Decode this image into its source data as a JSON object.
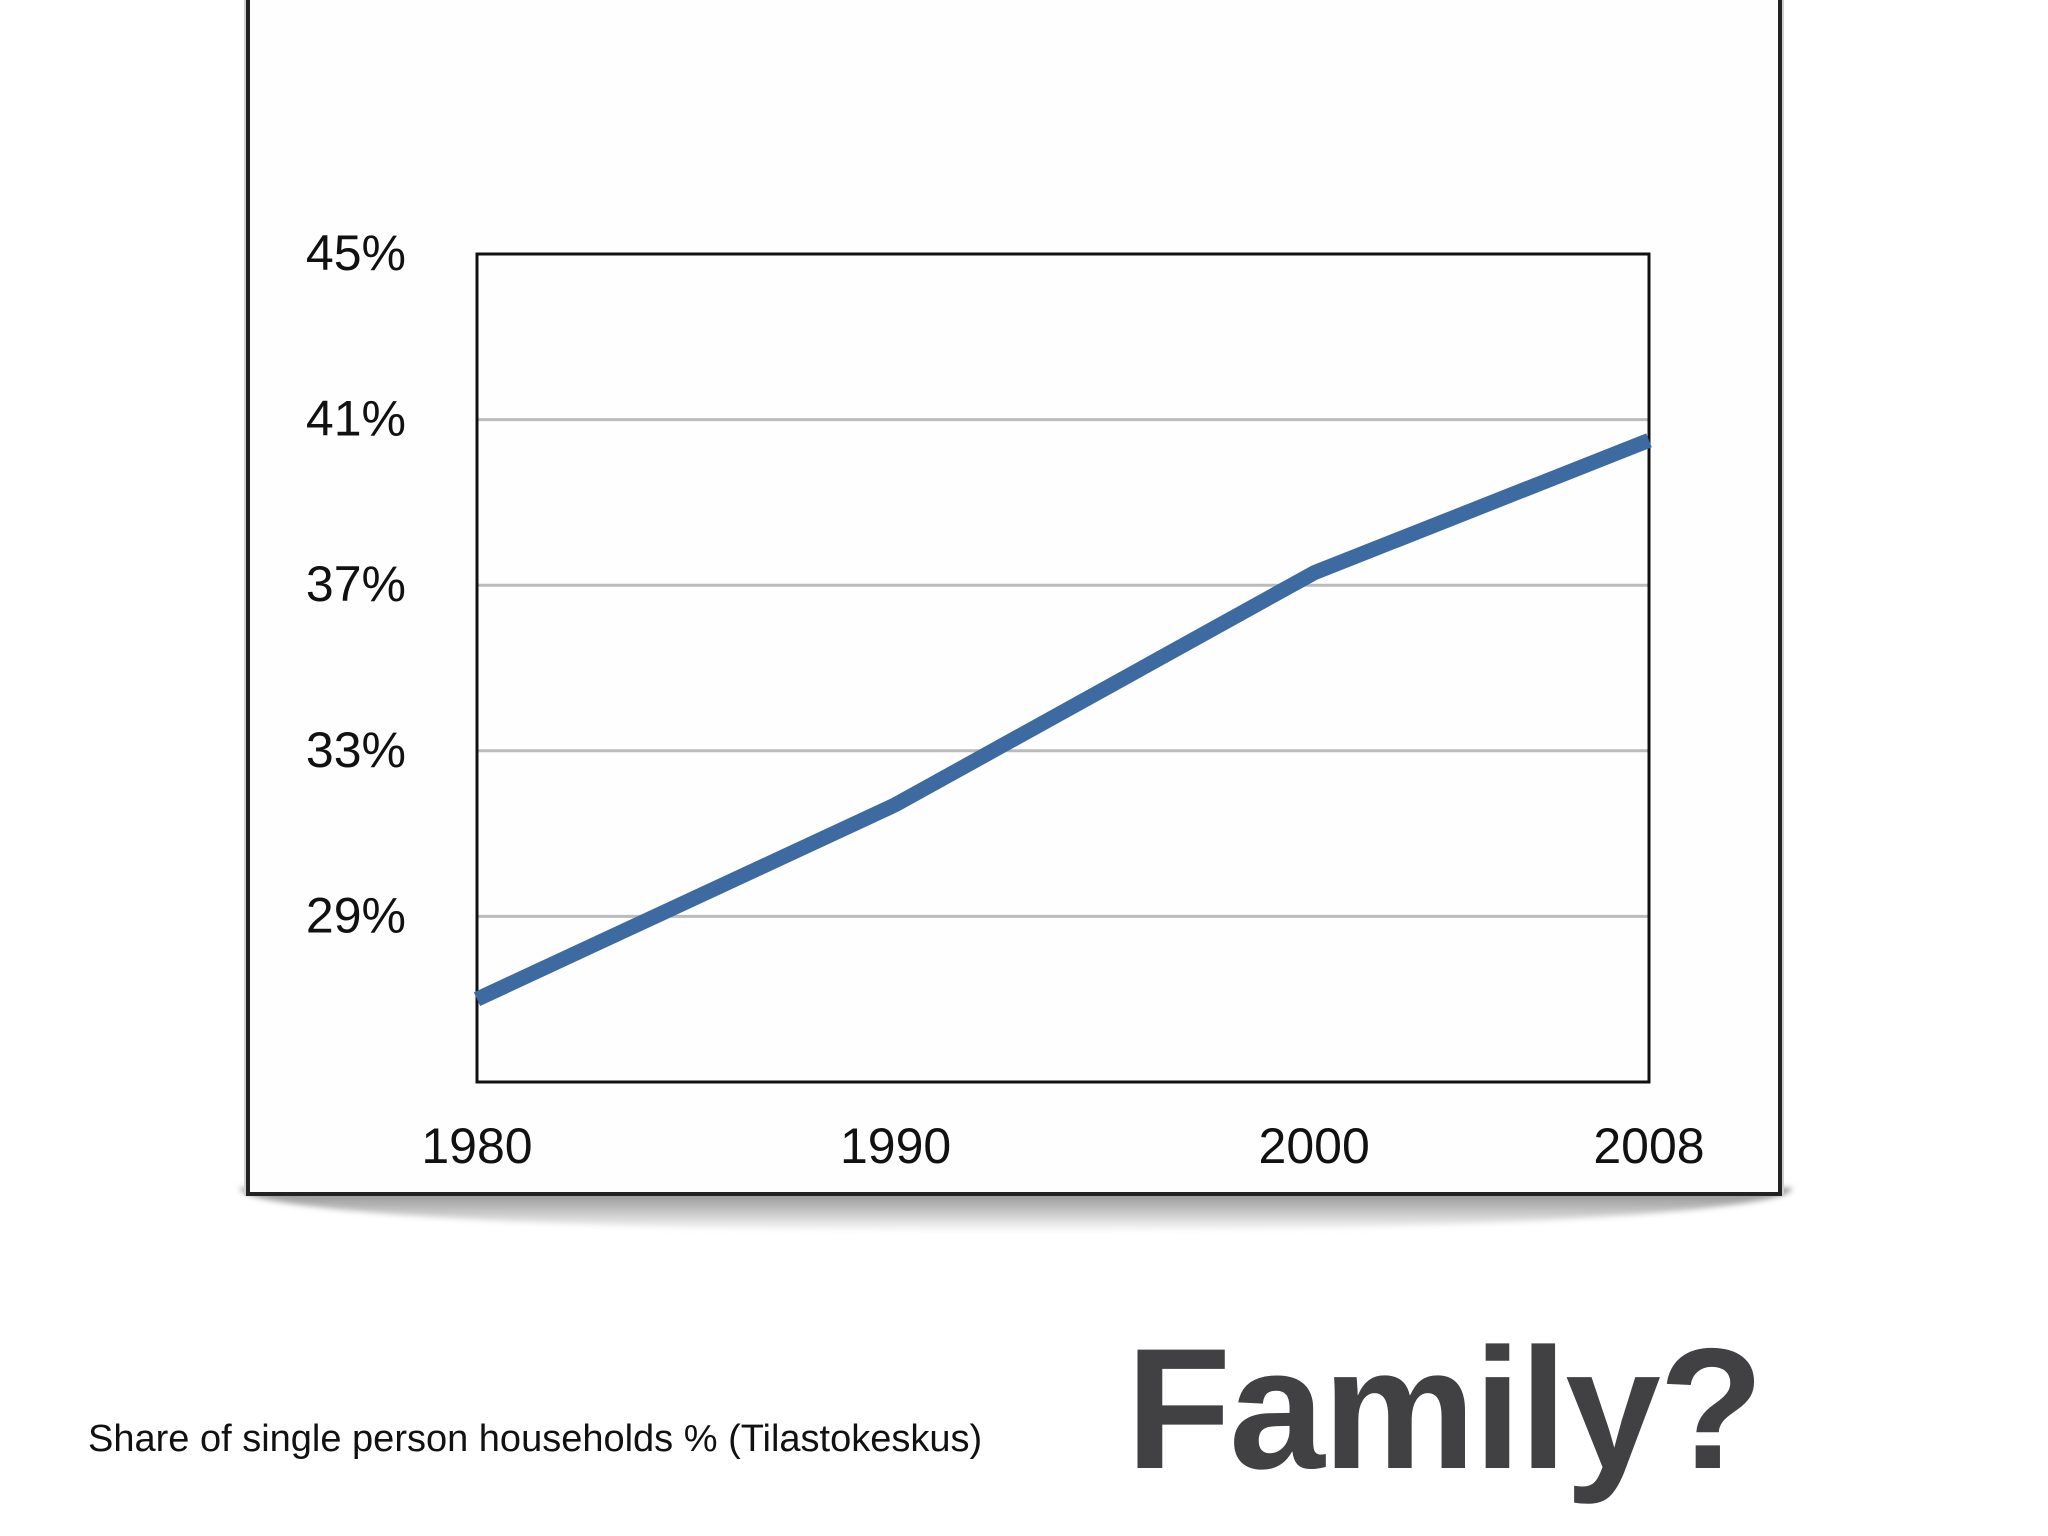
{
  "slide": {
    "caption": "Share of single person households % (Tilastokeskus)",
    "headline": "Family?"
  },
  "chart_data": {
    "type": "line",
    "title": "",
    "xlabel": "",
    "ylabel": "",
    "x": [
      1980,
      1990,
      2000,
      2008
    ],
    "x_tick_labels": [
      "1980",
      "1990",
      "2000",
      "2008"
    ],
    "y_tick_values": [
      29,
      33,
      37,
      41,
      45
    ],
    "y_tick_labels": [
      "29%",
      "33%",
      "37%",
      "41%",
      "45%"
    ],
    "ylim": [
      25,
      45
    ],
    "grid": true,
    "legend": "none",
    "series": [
      {
        "values": [
          27.0,
          31.7,
          37.3,
          40.5
        ],
        "color": "#3d6aa0"
      }
    ],
    "colors": {
      "line": "#3d6aa0",
      "grid": "#bbbbbb",
      "frame": "#111111",
      "tick_text": "#111111"
    }
  }
}
